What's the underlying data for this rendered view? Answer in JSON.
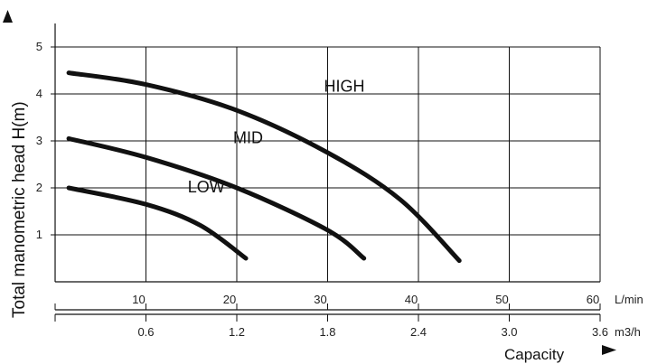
{
  "chart_data": {
    "type": "line",
    "ylabel": "Total manometric head H(m)",
    "xlabel": "Capacity",
    "x_unit": "L/min",
    "x2_unit": "m3/h",
    "xlim": [
      0,
      60
    ],
    "ylim": [
      0,
      5
    ],
    "x_ticks": [
      10,
      20,
      30,
      40,
      50,
      60
    ],
    "y_ticks": [
      1,
      2,
      3,
      4,
      5
    ],
    "x2_ticks": [
      "0.6",
      "1.2",
      "1.8",
      "2.4",
      "3.0",
      "3.6"
    ],
    "grid": true,
    "series": [
      {
        "name": "HIGH",
        "x": [
          1.5,
          10,
          20,
          30,
          38,
          44.5
        ],
        "y": [
          4.45,
          4.2,
          3.65,
          2.75,
          1.75,
          0.45
        ]
      },
      {
        "name": "MID",
        "x": [
          1.5,
          10,
          20,
          30,
          34
        ],
        "y": [
          3.05,
          2.65,
          2.0,
          1.1,
          0.5
        ]
      },
      {
        "name": "LOW",
        "x": [
          1.5,
          10,
          16,
          21
        ],
        "y": [
          2.0,
          1.65,
          1.2,
          0.5
        ]
      }
    ]
  }
}
